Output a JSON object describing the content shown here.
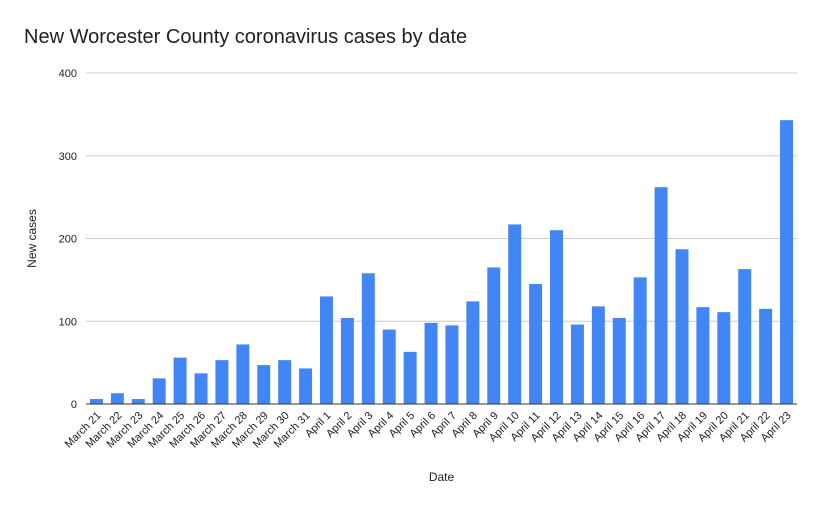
{
  "chart_data": {
    "type": "bar",
    "title": "New Worcester County coronavirus cases by date",
    "xlabel": "Date",
    "ylabel": "New cases",
    "ylim": [
      0,
      400
    ],
    "yticks": [
      0,
      100,
      200,
      300,
      400
    ],
    "grid": true,
    "legend": "none",
    "bar_color": "#4285f4",
    "categories": [
      "March 21",
      "March 22",
      "March 23",
      "March 24",
      "March 25",
      "March 26",
      "March 27",
      "March 28",
      "March 29",
      "March 30",
      "March 31",
      "April 1",
      "April 2",
      "April 3",
      "April 4",
      "April 5",
      "April 6",
      "April 7",
      "April 8",
      "April 9",
      "April 10",
      "April 11",
      "April 12",
      "April 13",
      "April 14",
      "April 15",
      "April 16",
      "April 17",
      "April 18",
      "April 19",
      "April 20",
      "April 21",
      "April 22",
      "April 23"
    ],
    "values": [
      6,
      13,
      6,
      31,
      56,
      37,
      53,
      72,
      47,
      53,
      43,
      130,
      104,
      158,
      90,
      63,
      98,
      95,
      124,
      165,
      217,
      145,
      210,
      96,
      118,
      104,
      153,
      262,
      187,
      117,
      111,
      163,
      115,
      343
    ]
  }
}
